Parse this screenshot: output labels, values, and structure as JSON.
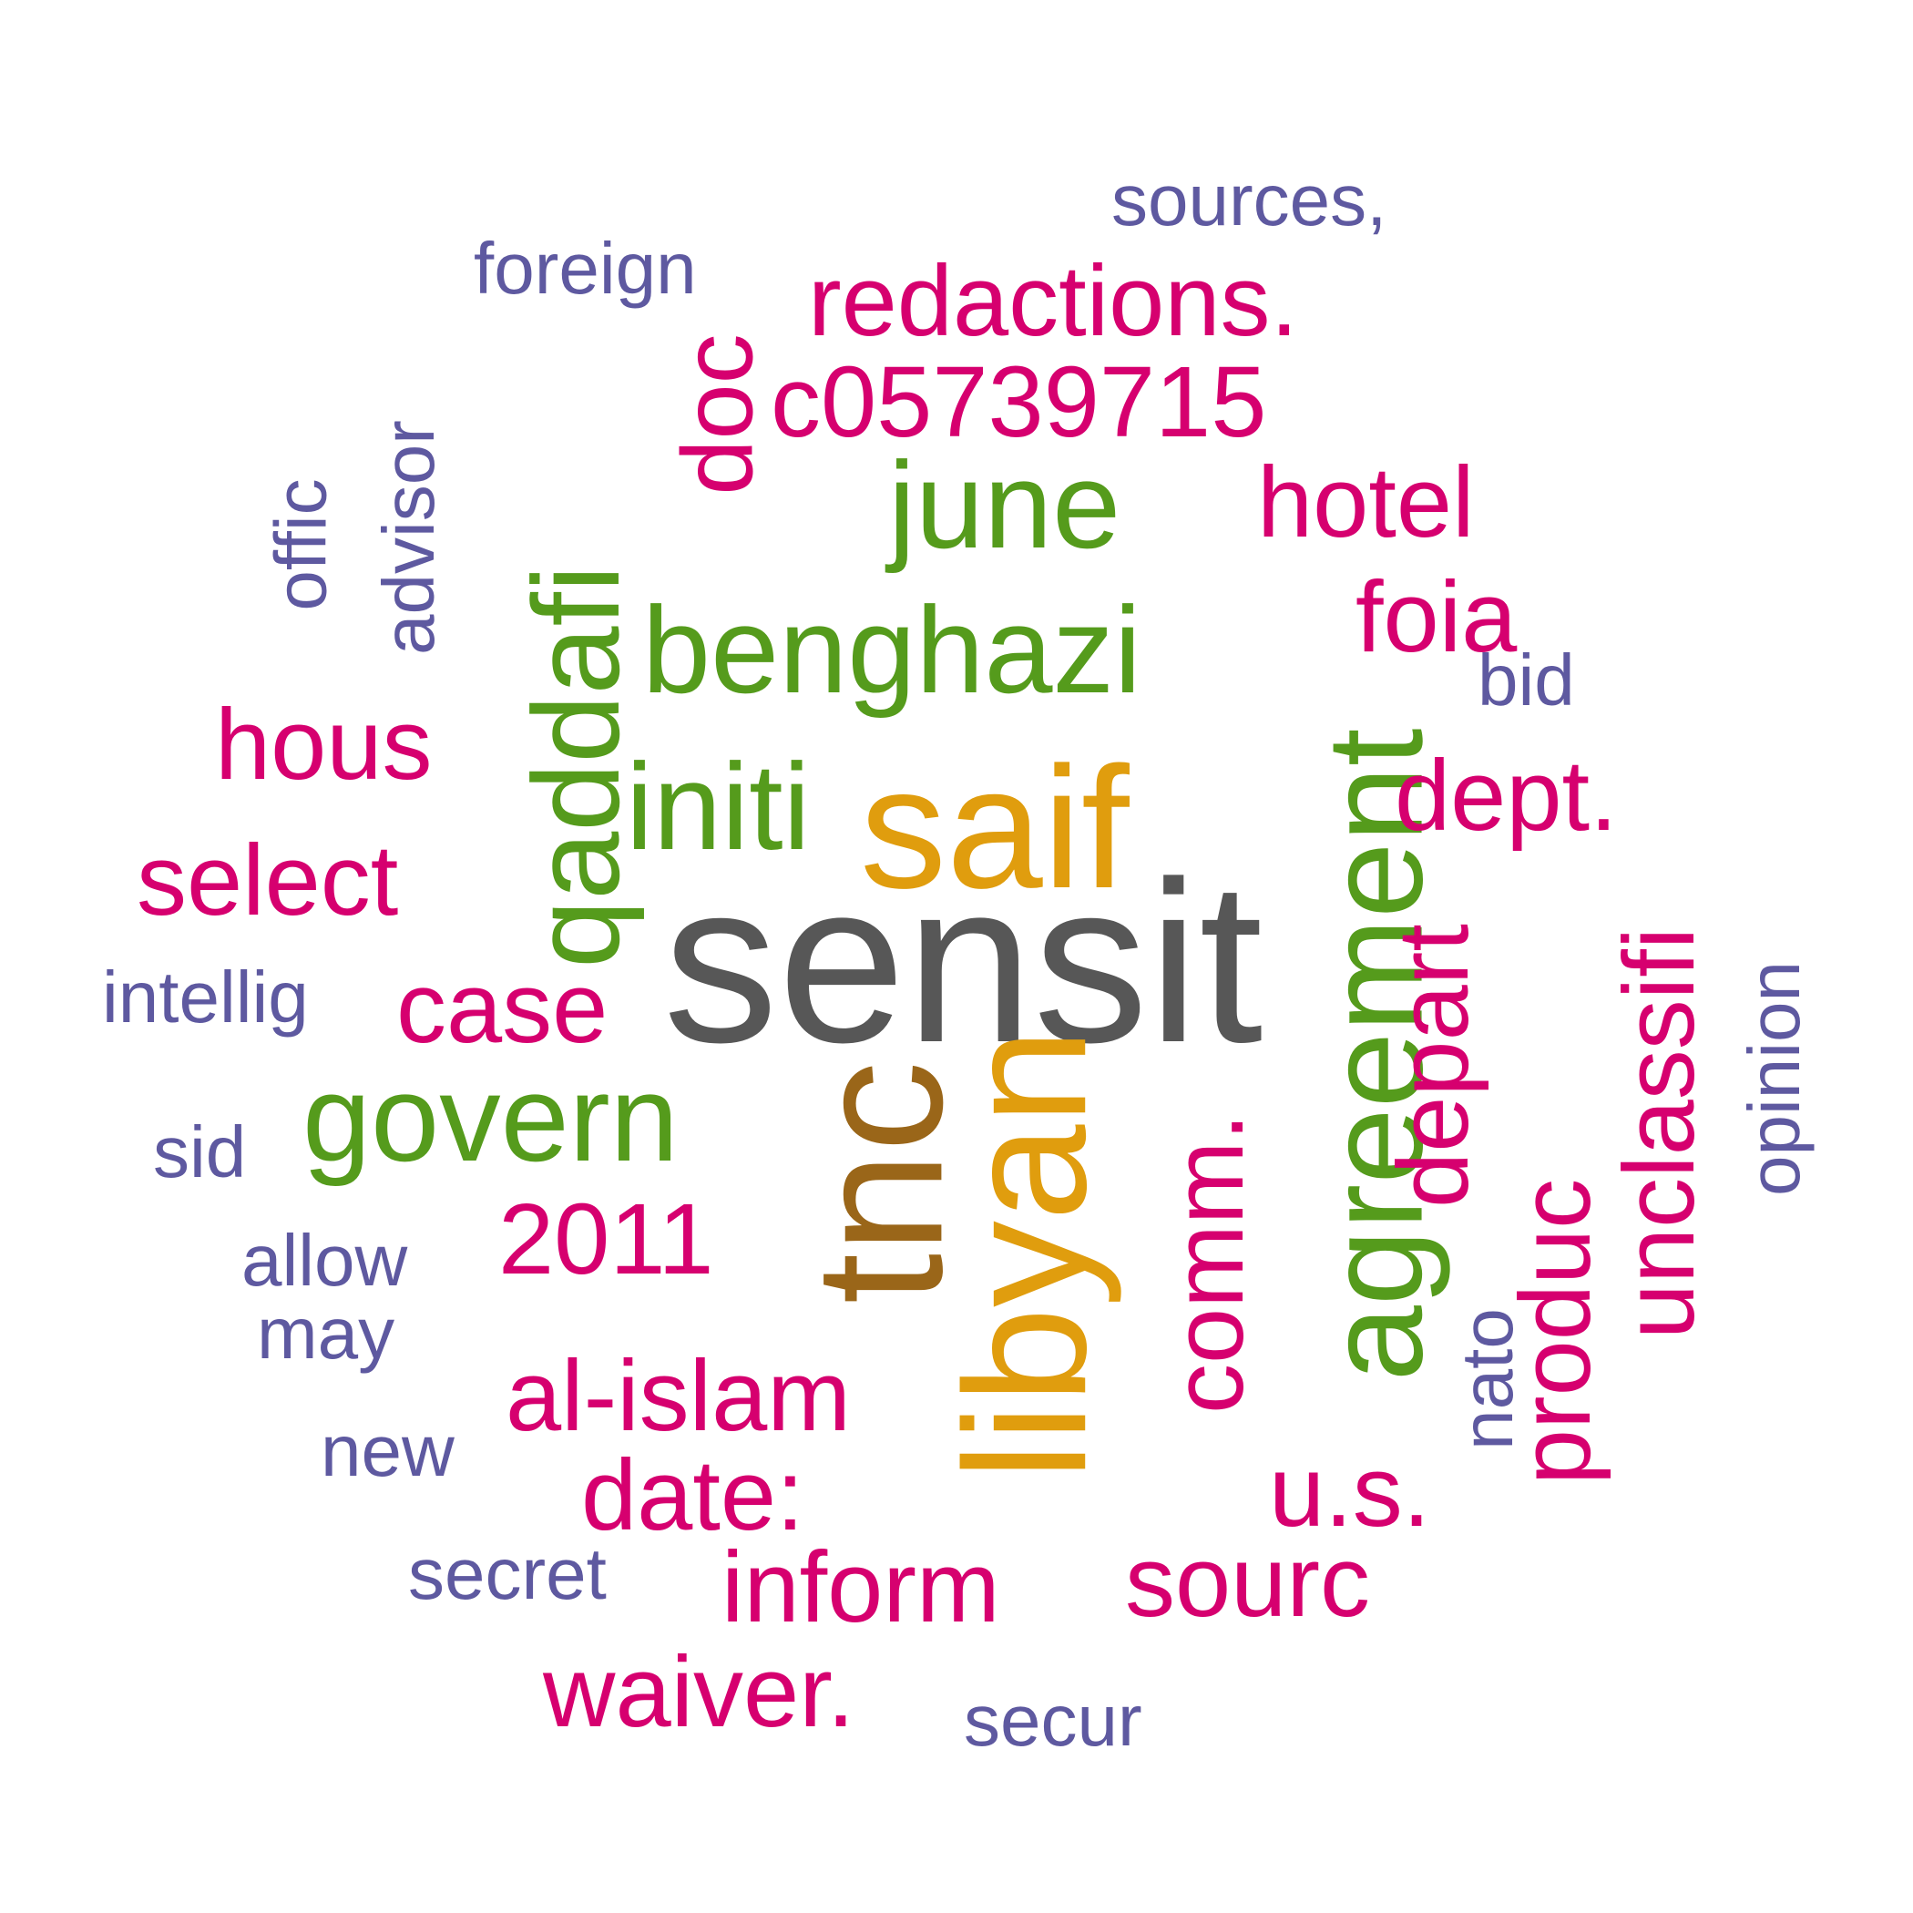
{
  "colors": {
    "purple": "#5e59a0",
    "magenta": "#d6006f",
    "green": "#559b1c",
    "gold": "#e09d0e",
    "dark": "#575757",
    "brown": "#9a6619"
  },
  "words": {
    "sensit": "sensit",
    "tnc": "tnc",
    "libyan": "libyan",
    "saif": "saif",
    "agreement": "agreement",
    "qaddafi": "qaddafi",
    "benghazi": "benghazi",
    "june": "june",
    "initi": "initi",
    "govern": "govern",
    "redactions": "redactions.",
    "c05739715": "c05739715",
    "doc": "doc",
    "hotel": "hotel",
    "foia": "foia",
    "hous": "hous",
    "dept": "dept.",
    "select": "select",
    "case": "case",
    "depart": "depart",
    "unclassifi": "unclassifi",
    "comm": "comm.",
    "produc": "produc",
    "y2011": "2011",
    "al_islam": "al-islam",
    "date": "date:",
    "inform": "inform",
    "sourc": "sourc",
    "us": "u.s.",
    "waiver": "waiver.",
    "sources": "sources,",
    "foreign": "foreign",
    "advisor": "advisor",
    "offic": "offic",
    "bid": "bid",
    "intellig": "intellig",
    "opinion": "opinion",
    "sid": "sid",
    "allow": "allow",
    "may": "may",
    "nato": "nato",
    "new": "new",
    "secret": "secret",
    "secur": "secur"
  }
}
